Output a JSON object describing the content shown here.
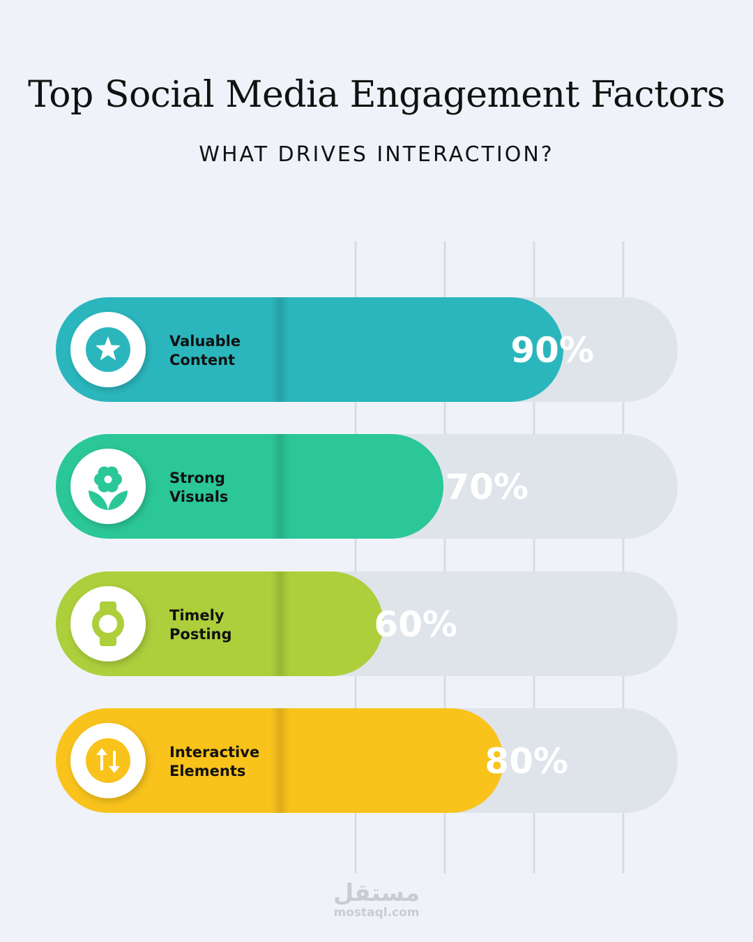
{
  "header": {
    "title": "Top Social Media Engagement Factors",
    "subtitle": "WHAT DRIVES INTERACTION?"
  },
  "watermark": {
    "arabic": "مستقل",
    "latin": "mostaql.com"
  },
  "chart_data": {
    "type": "bar",
    "orientation": "horizontal",
    "ylim": [
      0,
      100
    ],
    "grid": true,
    "categories": [
      [
        "Valuable",
        "Content"
      ],
      [
        "Strong",
        "Visuals"
      ],
      [
        "Timely",
        "Posting"
      ],
      [
        "Interactive",
        "Elements"
      ]
    ],
    "values": [
      90,
      70,
      60,
      80
    ],
    "value_labels": [
      "90%",
      "70%",
      "60%",
      "80%"
    ],
    "colors": [
      "#2bb6bd",
      "#2bc797",
      "#adcf3b",
      "#f9c31c"
    ],
    "track_color": "#dfe4ea",
    "icons": [
      "star-icon",
      "flower-icon",
      "watch-icon",
      "up-down-arrows-icon"
    ]
  }
}
